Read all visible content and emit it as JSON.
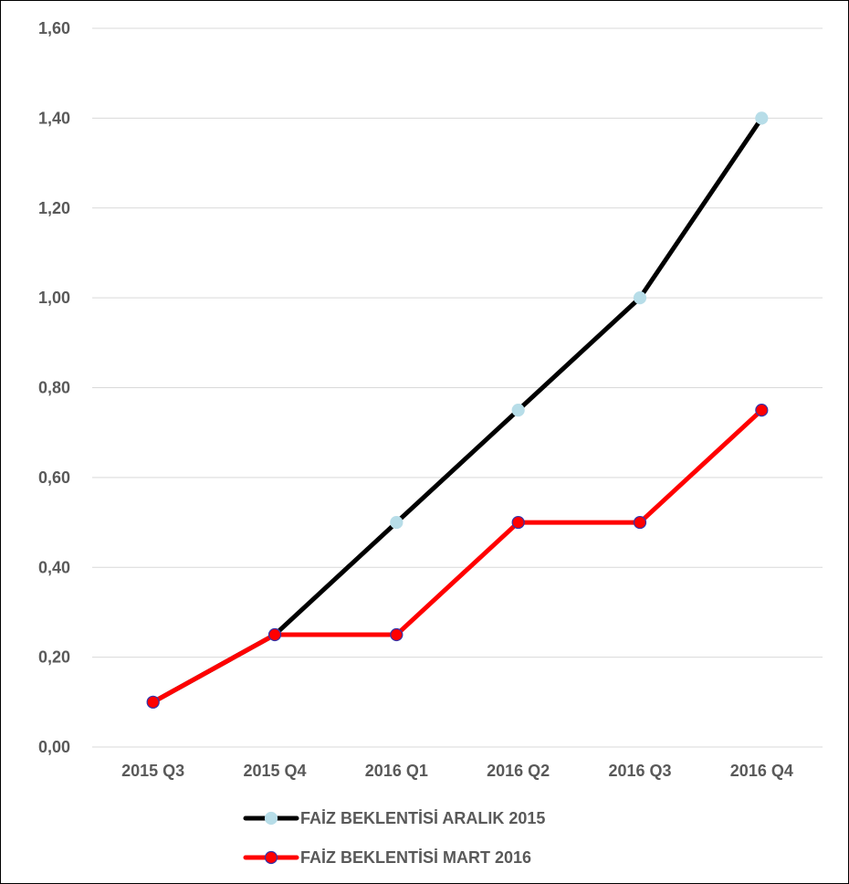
{
  "chart_data": {
    "type": "line",
    "categories": [
      "2015 Q3",
      "2015 Q4",
      "2016 Q1",
      "2016 Q2",
      "2016 Q3",
      "2016 Q4"
    ],
    "series": [
      {
        "name": "FAİZ BEKLENTİSİ ARALIK 2015",
        "values": [
          0.1,
          0.25,
          0.5,
          0.75,
          1.0,
          1.4
        ],
        "line_color": "#000000",
        "marker_color": "#b7dde8",
        "marker_border": "#b7dde8"
      },
      {
        "name": "FAİZ BEKLENTİSİ MART 2016",
        "values": [
          0.1,
          0.25,
          0.25,
          0.5,
          0.5,
          0.75
        ],
        "line_color": "#ff0000",
        "marker_color": "#ff0000",
        "marker_border": "#3333aa"
      }
    ],
    "y_ticks": [
      "0,00",
      "0,20",
      "0,40",
      "0,60",
      "0,80",
      "1,00",
      "1,20",
      "1,40",
      "1,60"
    ],
    "ylim": [
      0,
      1.6
    ],
    "grid": true,
    "legend_position": "bottom",
    "title": "",
    "xlabel": "",
    "ylabel": ""
  }
}
